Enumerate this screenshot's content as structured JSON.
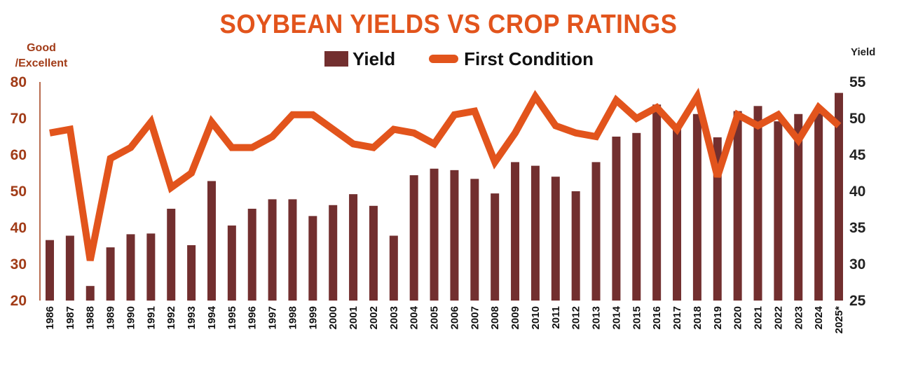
{
  "chart_data": {
    "type": "bar+line",
    "title": "SOYBEAN YIELDS VS CROP RATINGS",
    "y_left_label": "Good /Excellent",
    "y_right_label": "Yield",
    "y_left_ticks": [
      "80",
      "70",
      "60",
      "50",
      "40",
      "30",
      "20"
    ],
    "y_right_ticks": [
      "55",
      "50",
      "45",
      "40",
      "35",
      "30",
      "25"
    ],
    "y_left_lim": [
      20,
      80
    ],
    "y_right_lim": [
      25,
      55
    ],
    "legend": {
      "position": "top-center",
      "items": [
        "Yield",
        "First Condition"
      ]
    },
    "categories": [
      "1986",
      "1987",
      "1988",
      "1989",
      "1990",
      "1991",
      "1992",
      "1993",
      "1994",
      "1995",
      "1996",
      "1997",
      "1998",
      "1999",
      "2000",
      "2001",
      "2002",
      "2003",
      "2004",
      "2005",
      "2006",
      "2007",
      "2008",
      "2009",
      "2010",
      "2011",
      "2012",
      "2013",
      "2014",
      "2015",
      "2016",
      "2017",
      "2018",
      "2019",
      "2020",
      "2021",
      "2022",
      "2023",
      "2024",
      "2025*"
    ],
    "series": [
      {
        "name": "Yield",
        "type": "bar",
        "axis": "right",
        "color": "#722f2f",
        "values": [
          33.3,
          33.9,
          27.0,
          32.3,
          34.1,
          34.2,
          37.6,
          32.6,
          41.4,
          35.3,
          37.6,
          38.9,
          38.9,
          36.6,
          38.1,
          39.6,
          38.0,
          33.9,
          42.2,
          43.1,
          42.9,
          41.7,
          39.7,
          44.0,
          43.5,
          42.0,
          40.0,
          44.0,
          47.5,
          48.0,
          51.9,
          49.3,
          50.6,
          47.4,
          51.0,
          51.7,
          49.6,
          50.6,
          50.7,
          53.5
        ]
      },
      {
        "name": "First Condition",
        "type": "line",
        "axis": "left",
        "color": "#e2541c",
        "values": [
          66,
          67,
          31,
          59,
          62,
          69,
          51,
          55,
          69,
          62,
          62,
          65,
          71,
          71,
          67,
          63,
          62,
          67,
          66,
          63,
          71,
          72,
          58,
          66,
          76,
          68,
          66,
          65,
          75,
          70,
          73,
          67,
          76,
          54,
          71,
          68,
          71,
          64,
          73,
          68
        ]
      }
    ],
    "colors": {
      "title": "#e2541c",
      "left_axis": "#a13b17",
      "right_axis": "#222222",
      "bar": "#722f2f",
      "line": "#e2541c"
    }
  }
}
